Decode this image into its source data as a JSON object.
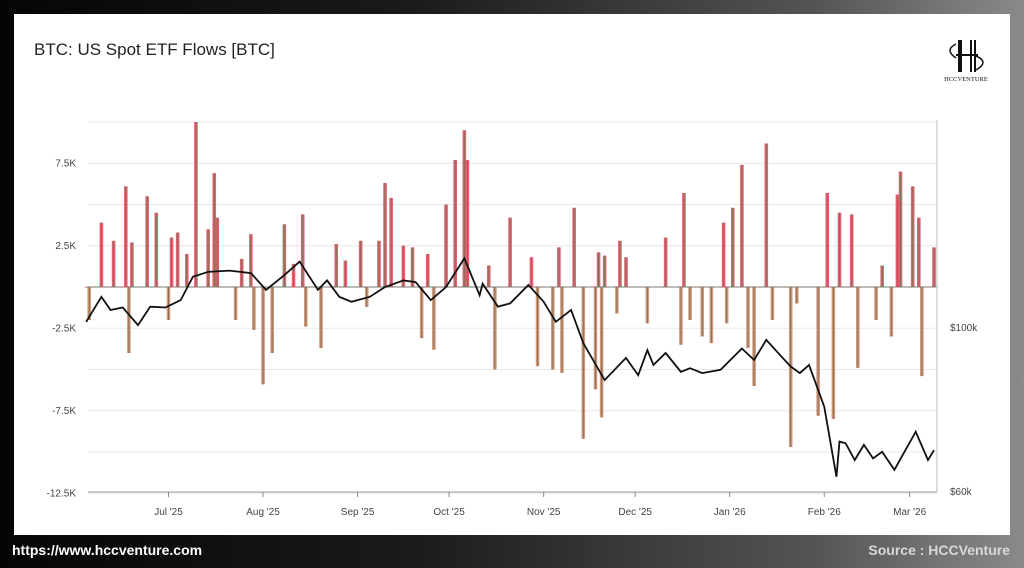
{
  "footer": {
    "url": "https://www.hccventure.com",
    "source": "Source : HCCVenture"
  },
  "logo": {
    "text": "HCCVENTURE"
  },
  "colors": {
    "inflow_bar": "#d6495e",
    "flow_outline": "#8c6e4e",
    "price_line": "#111111",
    "grid": "#e8e8e8"
  },
  "chart_data": {
    "type": "bar",
    "title": "BTC: US Spot ETF Flows [BTC]",
    "grid": true,
    "y_left": {
      "ticks": [
        "7.5K",
        "2.5K",
        "-2.5K",
        "-7.5K",
        "-12.5K"
      ],
      "tick_values": [
        7.5,
        2.5,
        -2.5,
        -7.5,
        -12.5
      ],
      "range_k_btc": [
        -12.5,
        10
      ]
    },
    "y_right": {
      "ticks": [
        "$100k",
        "$60k"
      ],
      "tick_values": [
        100,
        60
      ],
      "range_usd_k": [
        60,
        150
      ]
    },
    "x_ticks": [
      {
        "label": "Jul '25",
        "date": "2025-07-01"
      },
      {
        "label": "Aug '25",
        "date": "2025-08-01"
      },
      {
        "label": "Sep '25",
        "date": "2025-09-01"
      },
      {
        "label": "Oct '25",
        "date": "2025-10-01"
      },
      {
        "label": "Nov '25",
        "date": "2025-11-01"
      },
      {
        "label": "Dec '25",
        "date": "2025-12-01"
      },
      {
        "label": "Jan '26",
        "date": "2026-01-01"
      },
      {
        "label": "Feb '26",
        "date": "2026-02-01"
      },
      {
        "label": "Mar '26",
        "date": "2026-03-01"
      }
    ],
    "series": [
      {
        "type": "bar",
        "unit": "K BTC",
        "points": [
          [
            "2025-06-04",
            0
          ],
          [
            "2025-06-05",
            -2
          ],
          [
            "2025-06-09",
            3.9
          ],
          [
            "2025-06-11",
            0
          ],
          [
            "2025-06-13",
            2.8
          ],
          [
            "2025-06-17",
            6.1
          ],
          [
            "2025-06-18",
            -4
          ],
          [
            "2025-06-19",
            2.7
          ],
          [
            "2025-06-24",
            5.5
          ],
          [
            "2025-06-27",
            4.5
          ],
          [
            "2025-06-29",
            0
          ],
          [
            "2025-07-01",
            -2
          ],
          [
            "2025-07-02",
            3
          ],
          [
            "2025-07-04",
            3.3
          ],
          [
            "2025-07-07",
            2
          ],
          [
            "2025-07-10",
            10
          ],
          [
            "2025-07-11",
            0
          ],
          [
            "2025-07-14",
            3.5
          ],
          [
            "2025-07-16",
            6.9
          ],
          [
            "2025-07-17",
            4.2
          ],
          [
            "2025-07-21",
            0
          ],
          [
            "2025-07-23",
            -2
          ],
          [
            "2025-07-25",
            1.7
          ],
          [
            "2025-07-28",
            3.2
          ],
          [
            "2025-07-29",
            -2.6
          ],
          [
            "2025-08-01",
            -5.9
          ],
          [
            "2025-08-04",
            -4
          ],
          [
            "2025-08-08",
            3.8
          ],
          [
            "2025-08-11",
            1.4
          ],
          [
            "2025-08-14",
            4.4
          ],
          [
            "2025-08-15",
            -2.4
          ],
          [
            "2025-08-19",
            0
          ],
          [
            "2025-08-20",
            -3.7
          ],
          [
            "2025-08-25",
            2.6
          ],
          [
            "2025-08-28",
            1.6
          ],
          [
            "2025-09-02",
            2.8
          ],
          [
            "2025-09-04",
            -1.2
          ],
          [
            "2025-09-08",
            2.8
          ],
          [
            "2025-09-10",
            6.3
          ],
          [
            "2025-09-12",
            5.4
          ],
          [
            "2025-09-16",
            2.5
          ],
          [
            "2025-09-19",
            2.4
          ],
          [
            "2025-09-22",
            -3.1
          ],
          [
            "2025-09-24",
            2
          ],
          [
            "2025-09-26",
            -3.8
          ],
          [
            "2025-09-30",
            5
          ],
          [
            "2025-10-03",
            7.7
          ],
          [
            "2025-10-06",
            9.5
          ],
          [
            "2025-10-07",
            7.7
          ],
          [
            "2025-10-09",
            0
          ],
          [
            "2025-10-14",
            1.3
          ],
          [
            "2025-10-16",
            -5
          ],
          [
            "2025-10-21",
            4.2
          ],
          [
            "2025-10-28",
            1.8
          ],
          [
            "2025-10-30",
            -4.8
          ],
          [
            "2025-11-04",
            -5
          ],
          [
            "2025-11-06",
            2.4
          ],
          [
            "2025-11-07",
            -5.2
          ],
          [
            "2025-11-11",
            4.8
          ],
          [
            "2025-11-14",
            -9.2
          ],
          [
            "2025-11-18",
            -6.2
          ],
          [
            "2025-11-19",
            2.1
          ],
          [
            "2025-11-20",
            -7.9
          ],
          [
            "2025-11-21",
            1.9
          ],
          [
            "2025-11-25",
            -1.6
          ],
          [
            "2025-11-26",
            2.8
          ],
          [
            "2025-11-28",
            1.8
          ],
          [
            "2025-12-05",
            -2.2
          ],
          [
            "2025-12-11",
            3
          ],
          [
            "2025-12-16",
            -3.5
          ],
          [
            "2025-12-17",
            5.7
          ],
          [
            "2025-12-19",
            -2
          ],
          [
            "2025-12-23",
            -3
          ],
          [
            "2025-12-26",
            -3.4
          ],
          [
            "2025-12-30",
            3.9
          ],
          [
            "2025-12-31",
            -2.2
          ],
          [
            "2026-01-02",
            4.8
          ],
          [
            "2026-01-05",
            7.4
          ],
          [
            "2026-01-07",
            -3.7
          ],
          [
            "2026-01-09",
            -6
          ],
          [
            "2026-01-13",
            8.7
          ],
          [
            "2026-01-15",
            -2
          ],
          [
            "2026-01-21",
            -9.7
          ],
          [
            "2026-01-23",
            -1
          ],
          [
            "2026-01-30",
            -7.8
          ],
          [
            "2026-02-02",
            5.7
          ],
          [
            "2026-02-04",
            -8
          ],
          [
            "2026-02-06",
            4.5
          ],
          [
            "2026-02-10",
            4.4
          ],
          [
            "2026-02-12",
            -4.9
          ],
          [
            "2026-02-18",
            -2
          ],
          [
            "2026-02-20",
            1.3
          ],
          [
            "2026-02-23",
            -3
          ],
          [
            "2026-02-25",
            5.6
          ],
          [
            "2026-02-26",
            7
          ],
          [
            "2026-03-02",
            6.1
          ],
          [
            "2026-03-04",
            4.2
          ],
          [
            "2026-03-05",
            -5.4
          ],
          [
            "2026-03-09",
            2.4
          ]
        ]
      },
      {
        "type": "line",
        "unit": "USD K",
        "points": [
          [
            "2025-06-04",
            101.5
          ],
          [
            "2025-06-09",
            107.6
          ],
          [
            "2025-06-12",
            104.4
          ],
          [
            "2025-06-16",
            105
          ],
          [
            "2025-06-21",
            100.7
          ],
          [
            "2025-06-25",
            105.2
          ],
          [
            "2025-06-30",
            105
          ],
          [
            "2025-07-05",
            106.8
          ],
          [
            "2025-07-09",
            112.5
          ],
          [
            "2025-07-14",
            113.7
          ],
          [
            "2025-07-21",
            114
          ],
          [
            "2025-07-28",
            113.4
          ],
          [
            "2025-08-02",
            109.3
          ],
          [
            "2025-08-08",
            112.9
          ],
          [
            "2025-08-13",
            116.2
          ],
          [
            "2025-08-19",
            109.3
          ],
          [
            "2025-08-22",
            111.6
          ],
          [
            "2025-08-26",
            107.6
          ],
          [
            "2025-08-30",
            106.4
          ],
          [
            "2025-09-05",
            107.6
          ],
          [
            "2025-09-10",
            110
          ],
          [
            "2025-09-16",
            111.6
          ],
          [
            "2025-09-20",
            111.2
          ],
          [
            "2025-09-25",
            106.8
          ],
          [
            "2025-09-30",
            110
          ],
          [
            "2025-10-06",
            117
          ],
          [
            "2025-10-11",
            108
          ],
          [
            "2025-10-12",
            110.8
          ],
          [
            "2025-10-17",
            105.2
          ],
          [
            "2025-10-21",
            106
          ],
          [
            "2025-10-27",
            110.5
          ],
          [
            "2025-11-01",
            106.4
          ],
          [
            "2025-11-05",
            101.5
          ],
          [
            "2025-11-10",
            104.4
          ],
          [
            "2025-11-14",
            96.3
          ],
          [
            "2025-11-21",
            87.3
          ],
          [
            "2025-11-28",
            92.7
          ],
          [
            "2025-12-02",
            88.5
          ],
          [
            "2025-12-05",
            94.6
          ],
          [
            "2025-12-07",
            91
          ],
          [
            "2025-12-11",
            93.9
          ],
          [
            "2025-12-16",
            89.3
          ],
          [
            "2025-12-19",
            90.2
          ],
          [
            "2025-12-23",
            89
          ],
          [
            "2025-12-29",
            89.8
          ],
          [
            "2026-01-05",
            95
          ],
          [
            "2026-01-09",
            92.2
          ],
          [
            "2026-01-13",
            97.1
          ],
          [
            "2026-01-18",
            93
          ],
          [
            "2026-01-21",
            90.6
          ],
          [
            "2026-01-24",
            89
          ],
          [
            "2026-01-27",
            91
          ],
          [
            "2026-01-30",
            84.9
          ],
          [
            "2026-02-01",
            80.8
          ],
          [
            "2026-02-05",
            63.7
          ],
          [
            "2026-02-06",
            72.3
          ],
          [
            "2026-02-08",
            71.9
          ],
          [
            "2026-02-11",
            67.8
          ],
          [
            "2026-02-14",
            71.5
          ],
          [
            "2026-02-17",
            68.2
          ],
          [
            "2026-02-20",
            69.8
          ],
          [
            "2026-02-24",
            65.4
          ],
          [
            "2026-02-27",
            69.4
          ],
          [
            "2026-03-03",
            74.7
          ],
          [
            "2026-03-07",
            67.8
          ],
          [
            "2026-03-09",
            70.2
          ]
        ]
      }
    ]
  }
}
